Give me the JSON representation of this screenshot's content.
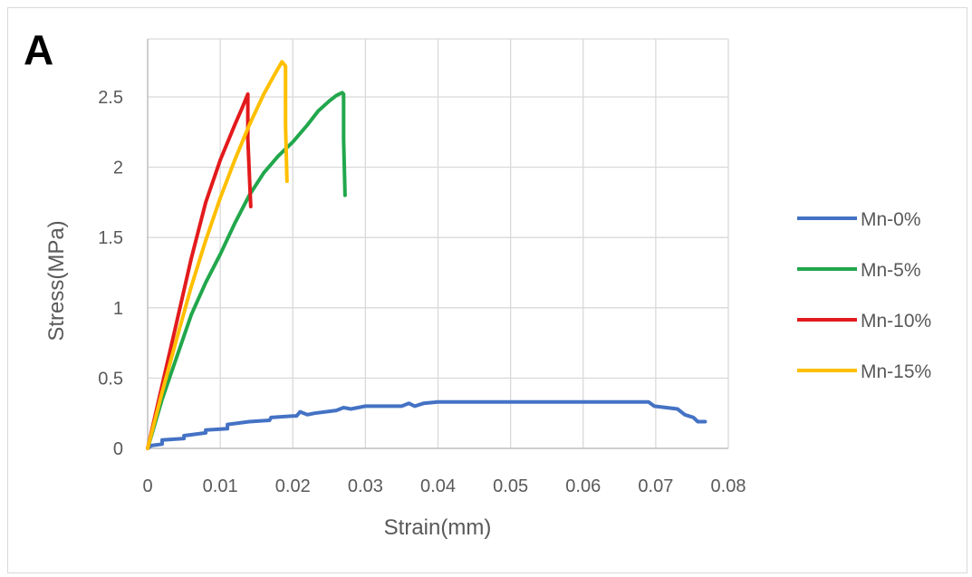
{
  "panel_label": "A",
  "chart_data": {
    "type": "line",
    "xlabel": "Strain(mm)",
    "ylabel": "Stress(MPa)",
    "xlim": [
      0,
      0.08
    ],
    "ylim": [
      0,
      2.8
    ],
    "x_ticks": [
      0,
      0.01,
      0.02,
      0.03,
      0.04,
      0.05,
      0.06,
      0.07,
      0.08
    ],
    "x_tick_labels": [
      "0",
      "0.01",
      "0.02",
      "0.03",
      "0.04",
      "0.05",
      "0.06",
      "0.07",
      "0.08"
    ],
    "y_ticks": [
      0,
      0.5,
      1,
      1.5,
      2,
      2.5
    ],
    "y_tick_labels": [
      "0",
      "0.5",
      "1",
      "1.5",
      "2",
      "2.5"
    ],
    "grid": true,
    "legend_position": "right",
    "series": [
      {
        "name": "Mn-0%",
        "color": "#4472c4",
        "points": [
          [
            0,
            0
          ],
          [
            0.0005,
            0.02
          ],
          [
            0.002,
            0.03
          ],
          [
            0.002,
            0.06
          ],
          [
            0.005,
            0.07
          ],
          [
            0.005,
            0.09
          ],
          [
            0.008,
            0.11
          ],
          [
            0.008,
            0.13
          ],
          [
            0.011,
            0.14
          ],
          [
            0.011,
            0.17
          ],
          [
            0.014,
            0.19
          ],
          [
            0.0168,
            0.2
          ],
          [
            0.017,
            0.22
          ],
          [
            0.02,
            0.23
          ],
          [
            0.0205,
            0.23
          ],
          [
            0.021,
            0.26
          ],
          [
            0.022,
            0.24
          ],
          [
            0.023,
            0.25
          ],
          [
            0.026,
            0.27
          ],
          [
            0.027,
            0.29
          ],
          [
            0.028,
            0.28
          ],
          [
            0.03,
            0.3
          ],
          [
            0.035,
            0.3
          ],
          [
            0.036,
            0.32
          ],
          [
            0.0368,
            0.3
          ],
          [
            0.038,
            0.32
          ],
          [
            0.04,
            0.33
          ],
          [
            0.05,
            0.33
          ],
          [
            0.06,
            0.33
          ],
          [
            0.069,
            0.33
          ],
          [
            0.0698,
            0.3
          ],
          [
            0.073,
            0.28
          ],
          [
            0.074,
            0.24
          ],
          [
            0.0752,
            0.22
          ],
          [
            0.0758,
            0.19
          ],
          [
            0.0768,
            0.19
          ]
        ]
      },
      {
        "name": "Mn-5%",
        "color": "#22a74c",
        "points": [
          [
            0,
            0
          ],
          [
            0.002,
            0.35
          ],
          [
            0.004,
            0.65
          ],
          [
            0.006,
            0.95
          ],
          [
            0.008,
            1.18
          ],
          [
            0.01,
            1.38
          ],
          [
            0.012,
            1.6
          ],
          [
            0.014,
            1.8
          ],
          [
            0.016,
            1.96
          ],
          [
            0.018,
            2.08
          ],
          [
            0.02,
            2.18
          ],
          [
            0.022,
            2.3
          ],
          [
            0.0235,
            2.4
          ],
          [
            0.025,
            2.47
          ],
          [
            0.026,
            2.51
          ],
          [
            0.0268,
            2.53
          ],
          [
            0.027,
            2.52
          ],
          [
            0.027,
            2.2
          ],
          [
            0.0272,
            1.8
          ]
        ]
      },
      {
        "name": "Mn-10%",
        "color": "#e31a1c",
        "points": [
          [
            0,
            0
          ],
          [
            0.002,
            0.45
          ],
          [
            0.004,
            0.9
          ],
          [
            0.006,
            1.35
          ],
          [
            0.008,
            1.75
          ],
          [
            0.01,
            2.05
          ],
          [
            0.012,
            2.3
          ],
          [
            0.013,
            2.42
          ],
          [
            0.0138,
            2.52
          ],
          [
            0.0138,
            2.2
          ],
          [
            0.0142,
            1.72
          ]
        ]
      },
      {
        "name": "Mn-15%",
        "color": "#ffbf00",
        "points": [
          [
            0,
            0
          ],
          [
            0.002,
            0.4
          ],
          [
            0.004,
            0.78
          ],
          [
            0.006,
            1.15
          ],
          [
            0.008,
            1.48
          ],
          [
            0.01,
            1.78
          ],
          [
            0.012,
            2.05
          ],
          [
            0.014,
            2.3
          ],
          [
            0.016,
            2.52
          ],
          [
            0.0175,
            2.66
          ],
          [
            0.0185,
            2.75
          ],
          [
            0.019,
            2.72
          ],
          [
            0.019,
            2.3
          ],
          [
            0.0192,
            1.9
          ]
        ]
      }
    ]
  }
}
